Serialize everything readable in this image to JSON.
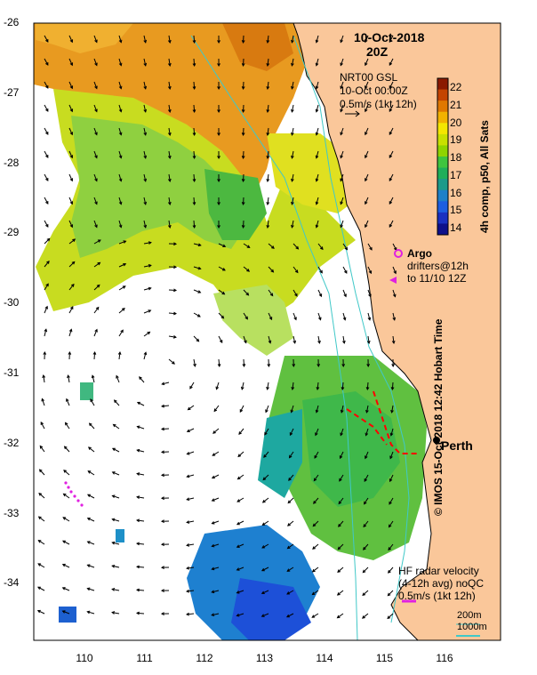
{
  "header": {
    "date": "10-Oct-2018",
    "time": "20Z"
  },
  "currents_legend": {
    "line1": "NRT00 GSL",
    "line2": "10-Oct 00:00Z",
    "line3": "0.5m/s (1kt 12h)"
  },
  "colorbar": {
    "title": "4h comp, p50, All Sats",
    "labels": [
      "22",
      "21",
      "20",
      "19",
      "18",
      "17",
      "16",
      "15",
      "14"
    ],
    "colors": [
      "#8b1a00",
      "#c44400",
      "#e07800",
      "#f2b200",
      "#f4e600",
      "#c8e000",
      "#8fd400",
      "#3fc43f",
      "#1fae5a",
      "#1c9a8a",
      "#1e80c8",
      "#1d5ee0",
      "#1a30c0",
      "#0e108a"
    ]
  },
  "argo_legend": {
    "title": "Argo",
    "line1": "drifters@12h",
    "line2": "to 11/10 12Z"
  },
  "city": {
    "name": "Perth"
  },
  "hf_legend": {
    "line1": "HF radar velocity",
    "line2": "(4-12h avg) noQC",
    "line3": "0.5m/s (1kt 12h)"
  },
  "depth_legend": {
    "d1": "200m",
    "d2": "1000m"
  },
  "credit": "© IMOS 15-Oct-2018 12:42 Hobart Time",
  "axes": {
    "y_ticks": [
      "-26",
      "-27",
      "-28",
      "-29",
      "-30",
      "-31",
      "-32",
      "-33",
      "-34"
    ],
    "x_ticks": [
      "110",
      "111",
      "112",
      "113",
      "114",
      "115",
      "116"
    ]
  },
  "palette": {
    "land": "#fac79a",
    "coast": "#000000",
    "isobath": "#40c8c8"
  }
}
